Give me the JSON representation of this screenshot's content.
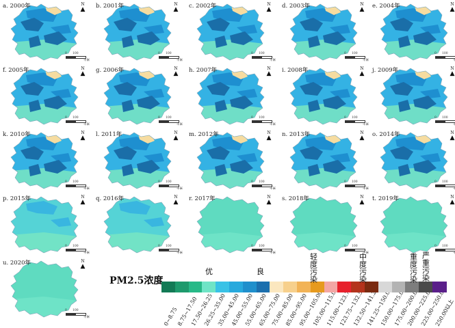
{
  "panels": [
    {
      "label": "a. 2000年",
      "style": "dark"
    },
    {
      "label": "b. 2001年",
      "style": "dark"
    },
    {
      "label": "c. 2002年",
      "style": "dark"
    },
    {
      "label": "d. 2003年",
      "style": "dark"
    },
    {
      "label": "e. 2004年",
      "style": "dark"
    },
    {
      "label": "f. 2005年",
      "style": "dark"
    },
    {
      "label": "g. 2006年",
      "style": "dark"
    },
    {
      "label": "h. 2007年",
      "style": "dark"
    },
    {
      "label": "i. 2008年",
      "style": "dark"
    },
    {
      "label": "j. 2009年",
      "style": "dark"
    },
    {
      "label": "k. 2010年",
      "style": "dark"
    },
    {
      "label": "l. 2011年",
      "style": "dark"
    },
    {
      "label": "m. 2012年",
      "style": "dark"
    },
    {
      "label": "n. 2013年",
      "style": "dark"
    },
    {
      "label": "o. 2014年",
      "style": "dark"
    },
    {
      "label": "p. 2015年",
      "style": "mid"
    },
    {
      "label": "q. 2016年",
      "style": "mid"
    },
    {
      "label": "r. 2017年",
      "style": "light"
    },
    {
      "label": "s. 2018年",
      "style": "light"
    },
    {
      "label": "t. 2019年",
      "style": "light"
    },
    {
      "label": "u. 2020年",
      "style": "light"
    }
  ],
  "map_annotations": {
    "north": "N",
    "scale_start": "0",
    "scale_end": "100",
    "scale_unit": "千米"
  },
  "legend": {
    "title": "PM2.5浓度",
    "categories": [
      "优",
      "良",
      "轻度污染",
      "中度污染",
      "重度污染",
      "严重污染"
    ],
    "classes": [
      {
        "range": "0~8.75",
        "color": "#127a55"
      },
      {
        "range": "8.75~17.50",
        "color": "#1d9a6c"
      },
      {
        "range": "17.50~26.25",
        "color": "#27b987"
      },
      {
        "range": "26.25~35.00",
        "color": "#6fe4c6"
      },
      {
        "range": "35.00~45.00",
        "color": "#39c2e6"
      },
      {
        "range": "45.00~55.00",
        "color": "#27a9dd"
      },
      {
        "range": "55.00~65.00",
        "color": "#1f8fcc"
      },
      {
        "range": "65.00~75.00",
        "color": "#1b6fae"
      },
      {
        "range": "75.00~85.00",
        "color": "#fbe7bf"
      },
      {
        "range": "85.00~95.00",
        "color": "#f7d08c"
      },
      {
        "range": "95.00~105.00",
        "color": "#f2b356"
      },
      {
        "range": "105.00~115.00",
        "color": "#e69a1e"
      },
      {
        "range": "115.00~123.75",
        "color": "#f3a6a4"
      },
      {
        "range": "123.75~132.50",
        "color": "#e7212c"
      },
      {
        "range": "132.50~141.25",
        "color": "#b4331c"
      },
      {
        "range": "141.25~150.00",
        "color": "#7a2a10"
      },
      {
        "range": "150.00~175.00",
        "color": "#d8d8d8"
      },
      {
        "range": "175.00~200.00",
        "color": "#b3b3b3"
      },
      {
        "range": "200.00~225.00",
        "color": "#7d7d7d"
      },
      {
        "range": "225.00~250.00",
        "color": "#4a4a4a"
      },
      {
        "range": "250.00以上",
        "color": "#5a1f8a"
      }
    ]
  }
}
